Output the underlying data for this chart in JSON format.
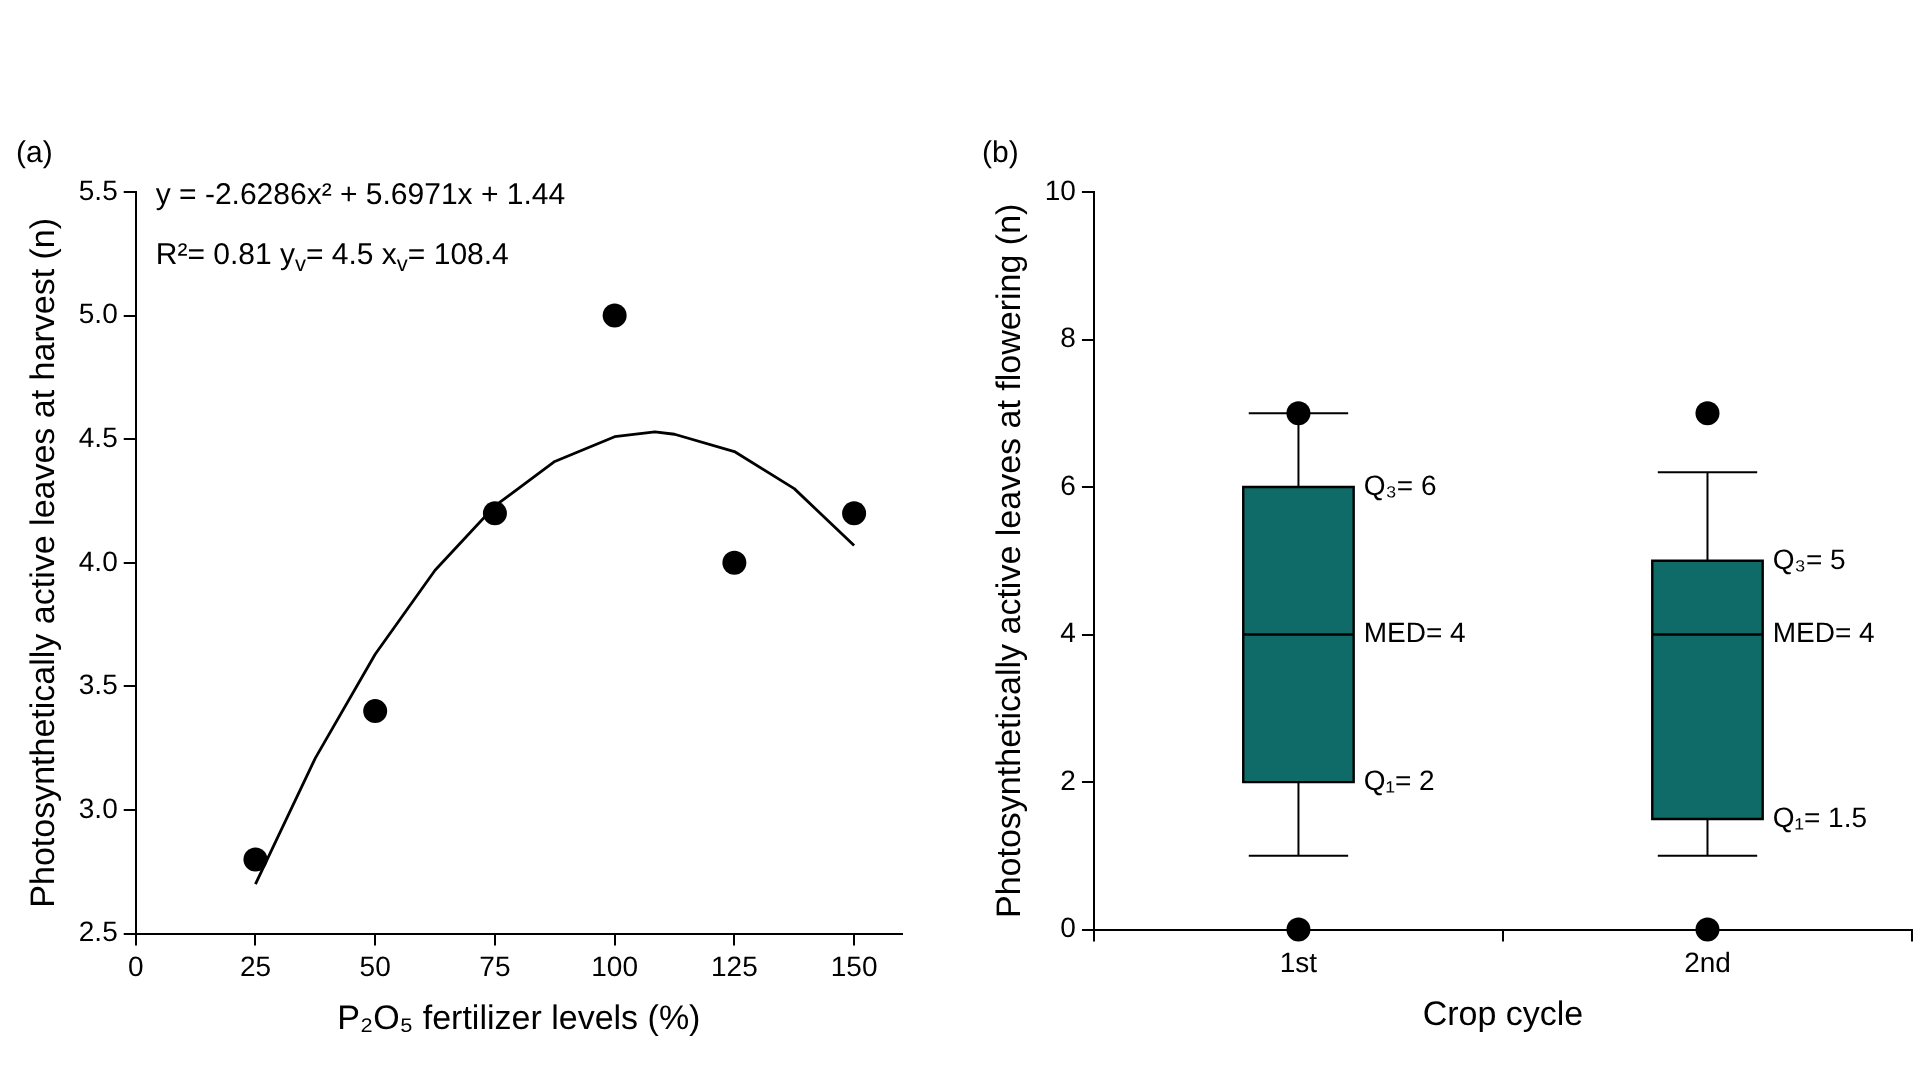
{
  "chart_data": [
    {
      "type": "scatter",
      "title": "(a)",
      "xlabel": "P₂O₅ fertilizer levels (%)",
      "ylabel": "Photosynthetically active leaves at harvest (n)",
      "xlim": [
        0,
        160
      ],
      "xticks": [
        0,
        25,
        50,
        75,
        100,
        125,
        150
      ],
      "ylim": [
        2.5,
        5.5
      ],
      "yticks": [
        2.5,
        {
          "value": 3,
          "label": "3.0"
        },
        3.5,
        {
          "value": 4,
          "label": "4.0"
        },
        4.5,
        {
          "value": 5,
          "label": "5.0"
        },
        5.5
      ],
      "grid": false,
      "legend": false,
      "marker": "circle",
      "series": [
        {
          "type": "scatter",
          "color": "#000000",
          "x": [
            25,
            50,
            75,
            100,
            125,
            150
          ],
          "values": [
            2.8,
            3.4,
            4.2,
            5.0,
            4.0,
            4.2
          ]
        },
        {
          "type": "line",
          "color": "#000000",
          "marker": "none",
          "line_style": "solid",
          "x": [
            25,
            37.5,
            50,
            62.5,
            75,
            87.5,
            100,
            108.4,
            112.5,
            125,
            137.5,
            150
          ],
          "values": [
            2.7,
            3.21,
            3.63,
            3.97,
            4.23,
            4.41,
            4.51,
            4.53,
            4.52,
            4.45,
            4.3,
            4.07
          ]
        }
      ],
      "annotations": [
        "y = -2.6286x² + 5.6971x + 1.44",
        "R²= 0.81 y$_{v}$= 4.5 x$_{v}$= 108.4"
      ]
    },
    {
      "type": "box",
      "title": "(b)",
      "xlabel": "Crop cycle",
      "ylabel": "Photosynthetically active leaves at flowering (n)",
      "categories": [
        "1st",
        "2nd"
      ],
      "color": "#0e6b67",
      "ylim": [
        0,
        10
      ],
      "yticks": [
        0,
        2,
        4,
        6,
        8,
        10
      ],
      "grid": false,
      "legend": false,
      "boxes": [
        {
          "low": 1,
          "q1": 2,
          "median": 4,
          "q3": 6,
          "high": 7,
          "outliers": [
            7,
            0
          ]
        },
        {
          "low": 1,
          "q1": 1.5,
          "median": 4,
          "q3": 5,
          "high": 6.2,
          "outliers": [
            7,
            0
          ]
        }
      ],
      "annotations": [
        {
          "text": "Q₃= 6",
          "x": "1st",
          "y": 6
        },
        {
          "text": "MED= 4",
          "x": "1st",
          "y": 4
        },
        {
          "text": "Q₁= 2",
          "x": "1st",
          "y": 2
        },
        {
          "text": "Q₃= 5",
          "x": "2nd",
          "y": 5
        },
        {
          "text": "MED= 4",
          "x": "2nd",
          "y": 4
        },
        {
          "text": "Q₁= 1.5",
          "x": "2nd",
          "y": 1.5
        }
      ]
    }
  ]
}
